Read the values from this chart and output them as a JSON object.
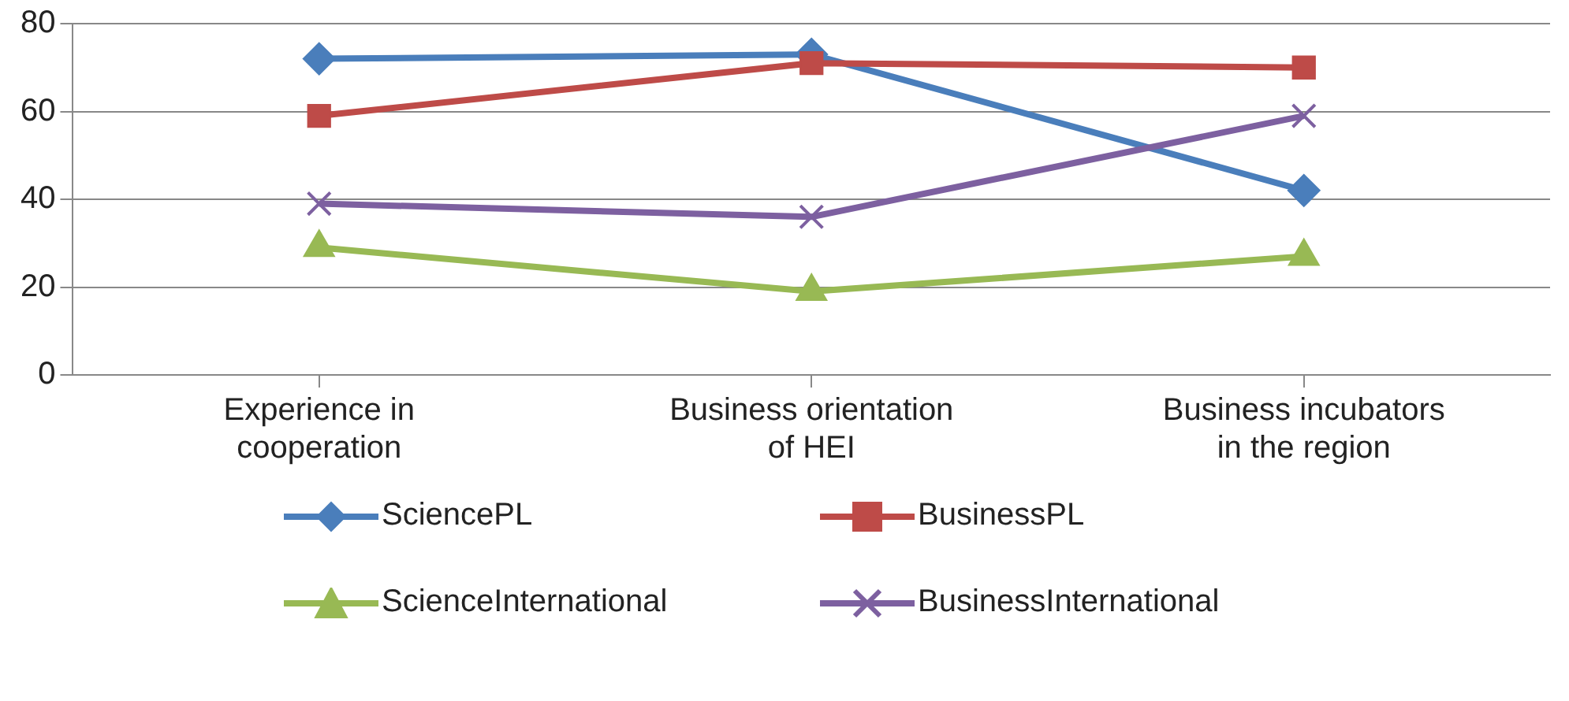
{
  "chart_data": {
    "type": "line",
    "categories": [
      "Experience in cooperation",
      "Business orientation of HEI",
      "Business incubators in the region"
    ],
    "series": [
      {
        "name": "SciencePL",
        "color": "#4a7ebb",
        "marker": "diamond",
        "values": [
          72,
          73,
          42
        ]
      },
      {
        "name": "BusinessPL",
        "color": "#be4b48",
        "marker": "square",
        "values": [
          59,
          71,
          70
        ]
      },
      {
        "name": "ScienceInternational",
        "color": "#98b954",
        "marker": "triangle",
        "values": [
          29,
          19,
          27
        ]
      },
      {
        "name": "BusinessInternational",
        "color": "#7d60a0",
        "marker": "cross",
        "values": [
          39,
          36,
          59
        ]
      }
    ],
    "ylim": [
      0,
      80
    ],
    "yticks": [
      0,
      20,
      40,
      60,
      80
    ],
    "grid": "y",
    "legend": "bottom"
  }
}
